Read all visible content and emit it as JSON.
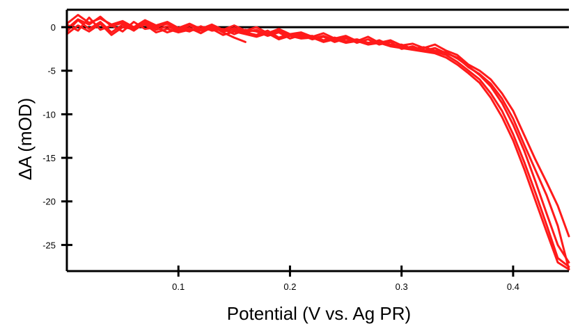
{
  "chart_data": {
    "type": "line",
    "title": "",
    "xlabel": "Potential (V vs. Ag PR)",
    "ylabel": "ΔA (mOD)",
    "xlim": [
      0.0,
      0.45
    ],
    "ylim": [
      -28,
      2
    ],
    "xticks": [
      0.1,
      0.2,
      0.3,
      0.4
    ],
    "xtick_labels": [
      "0.1",
      "0.2",
      "0.3",
      "0.4"
    ],
    "yticks": [
      0,
      -5,
      -10,
      -15,
      -20,
      -25
    ],
    "ytick_labels": [
      "0",
      "-5",
      "-10",
      "-15",
      "-20",
      "-25"
    ],
    "zero_line": 0,
    "grid": false,
    "legend": "none",
    "line_color": "#ff1a1a",
    "series": [
      {
        "x": [
          0.0,
          0.01,
          0.02,
          0.03,
          0.04,
          0.05,
          0.06,
          0.07,
          0.08,
          0.09,
          0.1,
          0.11,
          0.12,
          0.13,
          0.14,
          0.15,
          0.16,
          0.17,
          0.18,
          0.19,
          0.2,
          0.21,
          0.22,
          0.23,
          0.24,
          0.25,
          0.26,
          0.27,
          0.28,
          0.29,
          0.3,
          0.31,
          0.32,
          0.33,
          0.34,
          0.35,
          0.36,
          0.37,
          0.38,
          0.39,
          0.4,
          0.41,
          0.42,
          0.43,
          0.44,
          0.45
        ],
        "y": [
          -0.5,
          0.8,
          -0.2,
          0.6,
          -0.6,
          0.3,
          -0.4,
          0.5,
          -0.3,
          0.1,
          -0.4,
          -0.1,
          -0.7,
          0.0,
          -0.5,
          -0.3,
          -0.6,
          -0.9,
          -0.4,
          -1.2,
          -0.8,
          -1.1,
          -1.0,
          -1.5,
          -1.2,
          -1.6,
          -1.4,
          -1.8,
          -1.6,
          -2.0,
          -2.2,
          -2.4,
          -2.6,
          -2.8,
          -3.2,
          -4.0,
          -5.0,
          -6.0,
          -7.6,
          -9.6,
          -12.3,
          -15.5,
          -19.0,
          -22.7,
          -26.5,
          -27.5
        ]
      },
      {
        "x": [
          0.0,
          0.01,
          0.02,
          0.03,
          0.04,
          0.05,
          0.06,
          0.07,
          0.08,
          0.09,
          0.1,
          0.11,
          0.12,
          0.13,
          0.14,
          0.15,
          0.16,
          0.17,
          0.18,
          0.19,
          0.2,
          0.21,
          0.22,
          0.23,
          0.24,
          0.25,
          0.26,
          0.27,
          0.28,
          0.29,
          0.3,
          0.31,
          0.32,
          0.33,
          0.34,
          0.35,
          0.36,
          0.37,
          0.38,
          0.39,
          0.4,
          0.41,
          0.42,
          0.43,
          0.44,
          0.45
        ],
        "y": [
          0.3,
          -0.4,
          1.1,
          -0.3,
          0.2,
          -0.5,
          0.6,
          -0.2,
          0.0,
          -0.6,
          -0.2,
          -0.5,
          0.1,
          -0.4,
          -0.2,
          -0.8,
          -0.3,
          -0.5,
          -1.0,
          -0.6,
          -1.3,
          -0.9,
          -1.4,
          -1.1,
          -1.7,
          -1.3,
          -1.5,
          -1.9,
          -1.5,
          -2.1,
          -2.0,
          -2.5,
          -2.3,
          -2.7,
          -2.9,
          -3.6,
          -4.5,
          -5.5,
          -6.8,
          -8.7,
          -11.2,
          -14.2,
          -17.7,
          -21.4,
          -25.0,
          -27.0
        ]
      },
      {
        "x": [
          0.45,
          0.44,
          0.43,
          0.42,
          0.41,
          0.4,
          0.39,
          0.38,
          0.37,
          0.36,
          0.35,
          0.34,
          0.33,
          0.32,
          0.31,
          0.3,
          0.29,
          0.28,
          0.27,
          0.26,
          0.25,
          0.24,
          0.23,
          0.22,
          0.21,
          0.2,
          0.19,
          0.18,
          0.17,
          0.16,
          0.15,
          0.14,
          0.13,
          0.12,
          0.11,
          0.1,
          0.09,
          0.08,
          0.07,
          0.06,
          0.05,
          0.04,
          0.03,
          0.02,
          0.01,
          0.0
        ],
        "y": [
          -27.8,
          -22.8,
          -19.3,
          -16.4,
          -13.5,
          -10.5,
          -8.2,
          -6.5,
          -5.4,
          -4.6,
          -3.5,
          -3.0,
          -2.4,
          -2.7,
          -2.2,
          -2.5,
          -1.7,
          -2.0,
          -1.4,
          -1.8,
          -1.2,
          -1.5,
          -1.0,
          -1.3,
          -0.8,
          -1.0,
          -0.4,
          -0.9,
          -0.3,
          -0.6,
          -0.1,
          -0.5,
          0.0,
          -0.4,
          0.2,
          -0.3,
          0.4,
          0.0,
          0.6,
          -0.2,
          0.5,
          0.1,
          1.2,
          0.3,
          0.9,
          -0.2
        ]
      },
      {
        "x": [
          0.45,
          0.44,
          0.43,
          0.42,
          0.41,
          0.4,
          0.39,
          0.38,
          0.37,
          0.36,
          0.35,
          0.34,
          0.33,
          0.32,
          0.31,
          0.3,
          0.29,
          0.28,
          0.27,
          0.26,
          0.25,
          0.24,
          0.23,
          0.22,
          0.21,
          0.2,
          0.19,
          0.18,
          0.17,
          0.16,
          0.15,
          0.14,
          0.13,
          0.12,
          0.11,
          0.1,
          0.09,
          0.08,
          0.07,
          0.06,
          0.05,
          0.04,
          0.03,
          0.02,
          0.01,
          0.0
        ],
        "y": [
          -24.0,
          -20.5,
          -17.8,
          -15.2,
          -12.4,
          -9.6,
          -7.6,
          -6.0,
          -5.0,
          -4.3,
          -3.2,
          -2.7,
          -2.0,
          -2.4,
          -1.9,
          -2.1,
          -1.5,
          -1.8,
          -1.1,
          -1.6,
          -1.0,
          -1.3,
          -0.7,
          -1.1,
          -0.6,
          -0.8,
          -0.2,
          -0.7,
          0.0,
          -0.4,
          0.2,
          -0.3,
          0.3,
          -0.2,
          0.4,
          -0.1,
          0.6,
          0.2,
          0.8,
          0.0,
          0.7,
          0.3,
          1.0,
          0.5,
          1.4,
          0.4
        ]
      },
      {
        "x": [
          0.0,
          0.01,
          0.02,
          0.03,
          0.04,
          0.05,
          0.06,
          0.07,
          0.08,
          0.09,
          0.1,
          0.11,
          0.12,
          0.13,
          0.14,
          0.15,
          0.16,
          0.17,
          0.18,
          0.19,
          0.2,
          0.21,
          0.22,
          0.23,
          0.24,
          0.25,
          0.26,
          0.27,
          0.28,
          0.29,
          0.3,
          0.31,
          0.32,
          0.33,
          0.34,
          0.35,
          0.36,
          0.37,
          0.38,
          0.39,
          0.4,
          0.41,
          0.42,
          0.43,
          0.44,
          0.45
        ],
        "y": [
          -0.8,
          0.2,
          -0.5,
          0.4,
          -0.9,
          0.0,
          -0.2,
          0.3,
          -0.6,
          -0.2,
          -0.6,
          -0.3,
          -0.4,
          -0.2,
          -0.9,
          -0.5,
          -0.8,
          -1.1,
          -0.7,
          -1.4,
          -1.0,
          -1.3,
          -1.2,
          -1.7,
          -1.4,
          -1.8,
          -1.6,
          -2.0,
          -1.8,
          -2.2,
          -2.4,
          -2.6,
          -2.8,
          -3.0,
          -3.5,
          -4.3,
          -5.3,
          -6.4,
          -8.1,
          -10.3,
          -13.0,
          -16.3,
          -19.9,
          -23.5,
          -27.0,
          -27.8
        ]
      },
      {
        "x": [
          0.12,
          0.13,
          0.14,
          0.15,
          0.16
        ],
        "y": [
          -0.3,
          0.1,
          -0.6,
          -1.2,
          -1.7
        ]
      }
    ]
  }
}
